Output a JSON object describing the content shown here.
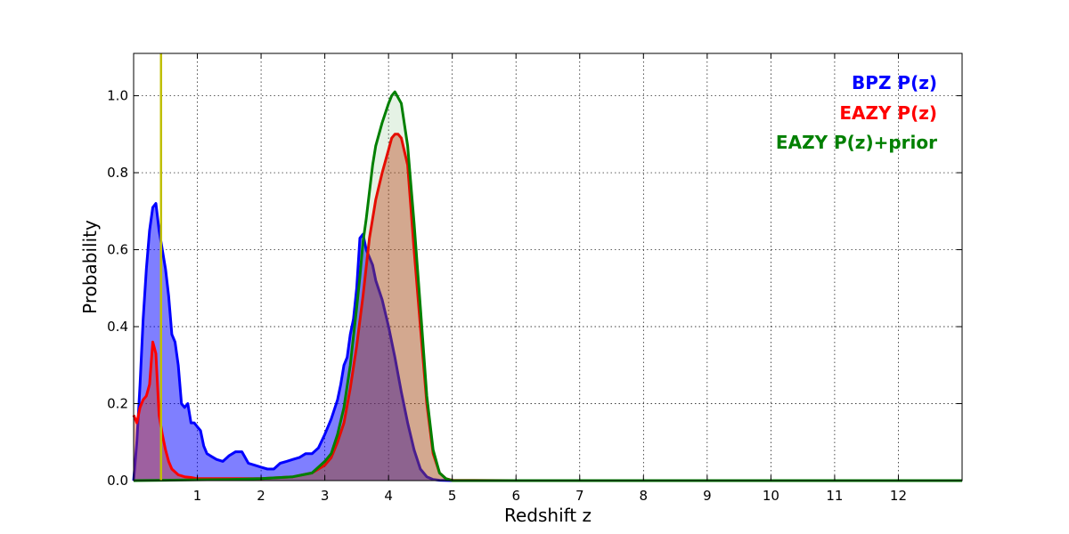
{
  "chart_data": {
    "type": "area",
    "xlabel": "Redshift z",
    "ylabel": "Probability",
    "xlim": [
      0,
      13
    ],
    "ylim": [
      0,
      1.11
    ],
    "x_ticks": [
      1,
      2,
      3,
      4,
      5,
      6,
      7,
      8,
      9,
      10,
      11,
      12
    ],
    "x_tick_labels": [
      "1",
      "2",
      "3",
      "4",
      "5",
      "6",
      "7",
      "8",
      "9",
      "10",
      "11",
      "12"
    ],
    "y_ticks": [
      0.0,
      0.2,
      0.4,
      0.6,
      0.8,
      1.0
    ],
    "y_tick_labels": [
      "0.0",
      "0.2",
      "0.4",
      "0.6",
      "0.8",
      "1.0"
    ],
    "grid": true,
    "grid_style": "dotted",
    "legend_position": "top-right",
    "vertical_line": {
      "x": 0.43,
      "color": "#bfbf00"
    },
    "series": [
      {
        "name": "BPZ P(z)",
        "color": "#0000ff",
        "fill": "#0000ff",
        "fill_opacity": 0.5,
        "x": [
          0.0,
          0.05,
          0.1,
          0.15,
          0.2,
          0.25,
          0.3,
          0.35,
          0.4,
          0.45,
          0.5,
          0.55,
          0.6,
          0.65,
          0.7,
          0.75,
          0.8,
          0.85,
          0.9,
          0.95,
          1.0,
          1.05,
          1.1,
          1.15,
          1.2,
          1.3,
          1.4,
          1.5,
          1.6,
          1.7,
          1.8,
          1.9,
          2.0,
          2.1,
          2.2,
          2.3,
          2.4,
          2.5,
          2.6,
          2.7,
          2.8,
          2.9,
          3.0,
          3.1,
          3.2,
          3.25,
          3.3,
          3.35,
          3.4,
          3.45,
          3.5,
          3.55,
          3.6,
          3.65,
          3.7,
          3.75,
          3.8,
          3.9,
          4.0,
          4.1,
          4.2,
          4.3,
          4.4,
          4.5,
          4.6,
          4.7,
          4.8,
          5.0,
          6.0,
          8.0,
          10.0,
          12.0,
          13.0
        ],
        "y": [
          0.0,
          0.1,
          0.25,
          0.42,
          0.55,
          0.65,
          0.71,
          0.72,
          0.65,
          0.6,
          0.55,
          0.48,
          0.38,
          0.36,
          0.3,
          0.2,
          0.19,
          0.2,
          0.15,
          0.15,
          0.14,
          0.13,
          0.09,
          0.07,
          0.065,
          0.055,
          0.05,
          0.065,
          0.075,
          0.075,
          0.045,
          0.04,
          0.035,
          0.03,
          0.03,
          0.045,
          0.05,
          0.055,
          0.06,
          0.07,
          0.07,
          0.085,
          0.12,
          0.16,
          0.21,
          0.25,
          0.3,
          0.32,
          0.38,
          0.42,
          0.5,
          0.63,
          0.64,
          0.6,
          0.58,
          0.56,
          0.52,
          0.47,
          0.4,
          0.32,
          0.23,
          0.15,
          0.08,
          0.03,
          0.01,
          0.003,
          0.001,
          0.0,
          0.0,
          0.0,
          0.0,
          0.0,
          0.0
        ]
      },
      {
        "name": "EAZY P(z)",
        "color": "#ff0000",
        "fill": "#cc3311",
        "fill_opacity": 0.4,
        "x": [
          0.0,
          0.05,
          0.1,
          0.15,
          0.2,
          0.25,
          0.3,
          0.35,
          0.4,
          0.45,
          0.5,
          0.55,
          0.6,
          0.7,
          0.8,
          0.9,
          1.0,
          1.5,
          2.0,
          2.5,
          2.8,
          3.0,
          3.1,
          3.2,
          3.3,
          3.4,
          3.5,
          3.6,
          3.7,
          3.8,
          3.9,
          4.0,
          4.05,
          4.1,
          4.15,
          4.2,
          4.3,
          4.4,
          4.5,
          4.6,
          4.7,
          4.8,
          4.9,
          5.0,
          6.0,
          8.0,
          10.0,
          12.0,
          13.0
        ],
        "y": [
          0.17,
          0.15,
          0.19,
          0.21,
          0.22,
          0.25,
          0.36,
          0.33,
          0.17,
          0.12,
          0.08,
          0.05,
          0.03,
          0.015,
          0.01,
          0.008,
          0.005,
          0.005,
          0.005,
          0.01,
          0.02,
          0.04,
          0.06,
          0.1,
          0.15,
          0.24,
          0.35,
          0.48,
          0.63,
          0.73,
          0.8,
          0.86,
          0.89,
          0.9,
          0.9,
          0.89,
          0.82,
          0.6,
          0.4,
          0.2,
          0.07,
          0.02,
          0.005,
          0.001,
          0.0,
          0.0,
          0.0,
          0.0,
          0.0
        ]
      },
      {
        "name": "EAZY P(z)+prior",
        "color": "#008000",
        "fill": "#008000",
        "fill_opacity": 0.1,
        "x": [
          0.0,
          0.5,
          1.0,
          1.5,
          2.0,
          2.5,
          2.8,
          3.0,
          3.1,
          3.2,
          3.3,
          3.4,
          3.5,
          3.55,
          3.6,
          3.65,
          3.7,
          3.75,
          3.8,
          3.9,
          4.0,
          4.05,
          4.1,
          4.2,
          4.3,
          4.4,
          4.5,
          4.6,
          4.7,
          4.8,
          4.9,
          5.0,
          6.0,
          8.0,
          10.0,
          12.0,
          13.0
        ],
        "y": [
          0.0,
          0.001,
          0.002,
          0.003,
          0.005,
          0.01,
          0.02,
          0.05,
          0.07,
          0.12,
          0.19,
          0.3,
          0.45,
          0.53,
          0.62,
          0.68,
          0.75,
          0.82,
          0.87,
          0.93,
          0.98,
          1.0,
          1.01,
          0.98,
          0.87,
          0.67,
          0.45,
          0.22,
          0.08,
          0.02,
          0.005,
          0.0,
          0.0,
          0.0,
          0.0,
          0.0,
          0.0
        ]
      }
    ]
  }
}
